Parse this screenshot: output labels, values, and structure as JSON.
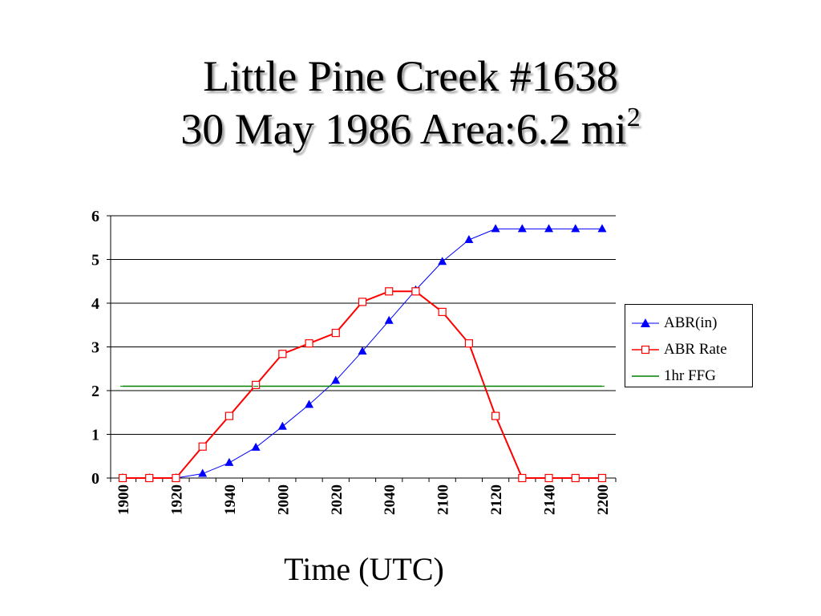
{
  "title": {
    "line1": "Little Pine Creek #1638",
    "line2_prefix": "30 May 1986  Area:6.2 mi",
    "line2_sup": "2"
  },
  "colors": {
    "abr_in": "#0000ff",
    "abr_rate": "#ff0000",
    "ffg": "#008000",
    "grid": "#000000"
  },
  "chart_data": {
    "type": "line",
    "xlabel": "Time (UTC)",
    "ylabel": "",
    "ylim": [
      0,
      6
    ],
    "yticks": [
      0,
      1,
      2,
      3,
      4,
      5,
      6
    ],
    "grid": "horizontal",
    "legend_position": "right",
    "x": [
      "1900",
      "1910",
      "1920",
      "1930",
      "1940",
      "1950",
      "2000",
      "2010",
      "2020",
      "2030",
      "2040",
      "2050",
      "2100",
      "2110",
      "2120",
      "2130",
      "2140",
      "2150",
      "2200"
    ],
    "xtick_labels": [
      "1900",
      "1920",
      "1940",
      "2000",
      "2020",
      "2040",
      "2100",
      "2120",
      "2140",
      "2200"
    ],
    "series": [
      {
        "name": "ABR(in)",
        "marker": "filled-triangle",
        "values": [
          0,
          0,
          0,
          0.1,
          0.35,
          0.7,
          1.18,
          1.68,
          2.23,
          2.9,
          3.6,
          4.3,
          4.95,
          5.45,
          5.7,
          5.7,
          5.7,
          5.7,
          5.7
        ]
      },
      {
        "name": "ABR Rate",
        "marker": "open-square",
        "values": [
          0,
          0,
          0,
          0.72,
          1.42,
          2.13,
          2.84,
          3.08,
          3.32,
          4.03,
          4.27,
          4.27,
          3.8,
          3.08,
          1.42,
          0,
          0,
          0,
          0
        ]
      },
      {
        "name": "1hr FFG",
        "marker": "none",
        "values": [
          2.1,
          2.1,
          2.1,
          2.1,
          2.1,
          2.1,
          2.1,
          2.1,
          2.1,
          2.1,
          2.1,
          2.1,
          2.1,
          2.1,
          2.1,
          2.1,
          2.1,
          2.1,
          2.1
        ]
      }
    ]
  }
}
